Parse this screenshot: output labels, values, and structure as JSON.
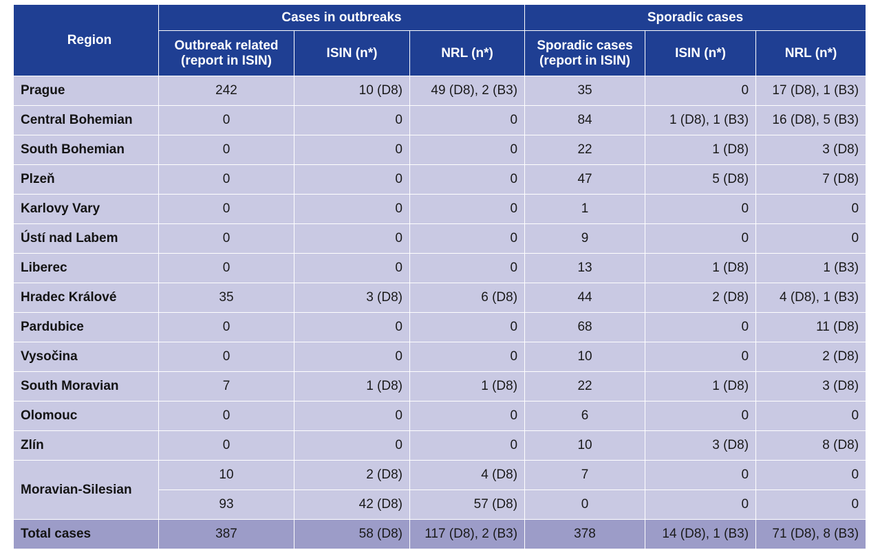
{
  "headers": {
    "region": "Region",
    "group_outbreaks": "Cases in outbreaks",
    "group_sporadic": "Sporadic cases",
    "col_outbreak_related": "Outbreak related (report in ISIN)",
    "col_isin_outbreak": "ISIN (n*)",
    "col_nrl_outbreak": "NRL (n*)",
    "col_sporadic_cases": "Sporadic cases (report in ISIN)",
    "col_isin_sporadic": "ISIN (n*)",
    "col_nrl_sporadic": "NRL (n*)"
  },
  "rows": [
    {
      "region": "Prague",
      "outbreak": "242",
      "isin_o": "10 (D8)",
      "nrl_o": "49 (D8), 2 (B3)",
      "sporadic": "35",
      "isin_s": "0",
      "nrl_s": "17 (D8), 1 (B3)"
    },
    {
      "region": "Central Bohemian",
      "outbreak": "0",
      "isin_o": "0",
      "nrl_o": "0",
      "sporadic": "84",
      "isin_s": "1 (D8), 1 (B3)",
      "nrl_s": "16 (D8), 5 (B3)"
    },
    {
      "region": "South Bohemian",
      "outbreak": "0",
      "isin_o": "0",
      "nrl_o": "0",
      "sporadic": "22",
      "isin_s": "1 (D8)",
      "nrl_s": "3 (D8)"
    },
    {
      "region": "Plzeň",
      "outbreak": "0",
      "isin_o": "0",
      "nrl_o": "0",
      "sporadic": "47",
      "isin_s": "5 (D8)",
      "nrl_s": "7 (D8)"
    },
    {
      "region": "Karlovy Vary",
      "outbreak": "0",
      "isin_o": "0",
      "nrl_o": "0",
      "sporadic": "1",
      "isin_s": "0",
      "nrl_s": "0"
    },
    {
      "region": "Ústí nad Labem",
      "outbreak": "0",
      "isin_o": "0",
      "nrl_o": "0",
      "sporadic": "9",
      "isin_s": "0",
      "nrl_s": "0"
    },
    {
      "region": "Liberec",
      "outbreak": "0",
      "isin_o": "0",
      "nrl_o": "0",
      "sporadic": "13",
      "isin_s": "1 (D8)",
      "nrl_s": "1 (B3)"
    },
    {
      "region": "Hradec Králové",
      "outbreak": "35",
      "isin_o": "3 (D8)",
      "nrl_o": "6 (D8)",
      "sporadic": "44",
      "isin_s": "2 (D8)",
      "nrl_s": "4 (D8), 1 (B3)"
    },
    {
      "region": "Pardubice",
      "outbreak": "0",
      "isin_o": "0",
      "nrl_o": "0",
      "sporadic": "68",
      "isin_s": "0",
      "nrl_s": "11 (D8)"
    },
    {
      "region": "Vysočina",
      "outbreak": "0",
      "isin_o": "0",
      "nrl_o": "0",
      "sporadic": "10",
      "isin_s": "0",
      "nrl_s": "2 (D8)"
    },
    {
      "region": "South Moravian",
      "outbreak": "7",
      "isin_o": "1 (D8)",
      "nrl_o": "1 (D8)",
      "sporadic": "22",
      "isin_s": "1 (D8)",
      "nrl_s": "3 (D8)"
    },
    {
      "region": "Olomouc",
      "outbreak": "0",
      "isin_o": "0",
      "nrl_o": "0",
      "sporadic": "6",
      "isin_s": "0",
      "nrl_s": "0"
    },
    {
      "region": "Zlín",
      "outbreak": "0",
      "isin_o": "0",
      "nrl_o": "0",
      "sporadic": "10",
      "isin_s": "3 (D8)",
      "nrl_s": "8 (D8)"
    }
  ],
  "moravian": {
    "region": "Moravian-Silesian",
    "rows": [
      {
        "outbreak": "10",
        "isin_o": "2 (D8)",
        "nrl_o": "4 (D8)",
        "sporadic": "7",
        "isin_s": "0",
        "nrl_s": "0"
      },
      {
        "outbreak": "93",
        "isin_o": "42 (D8)",
        "nrl_o": "57 (D8)",
        "sporadic": "0",
        "isin_s": "0",
        "nrl_s": "0"
      }
    ]
  },
  "total": {
    "region": "Total cases",
    "outbreak": "387",
    "isin_o": "58 (D8)",
    "nrl_o": "117 (D8), 2 (B3)",
    "sporadic": "378",
    "isin_s": "14 (D8), 1 (B3)",
    "nrl_s": "71 (D8), 8 (B3)"
  },
  "colors": {
    "header_bg": "#1f3f93",
    "row_bg": "#c9c9e3",
    "total_bg": "#9c9cc8"
  }
}
